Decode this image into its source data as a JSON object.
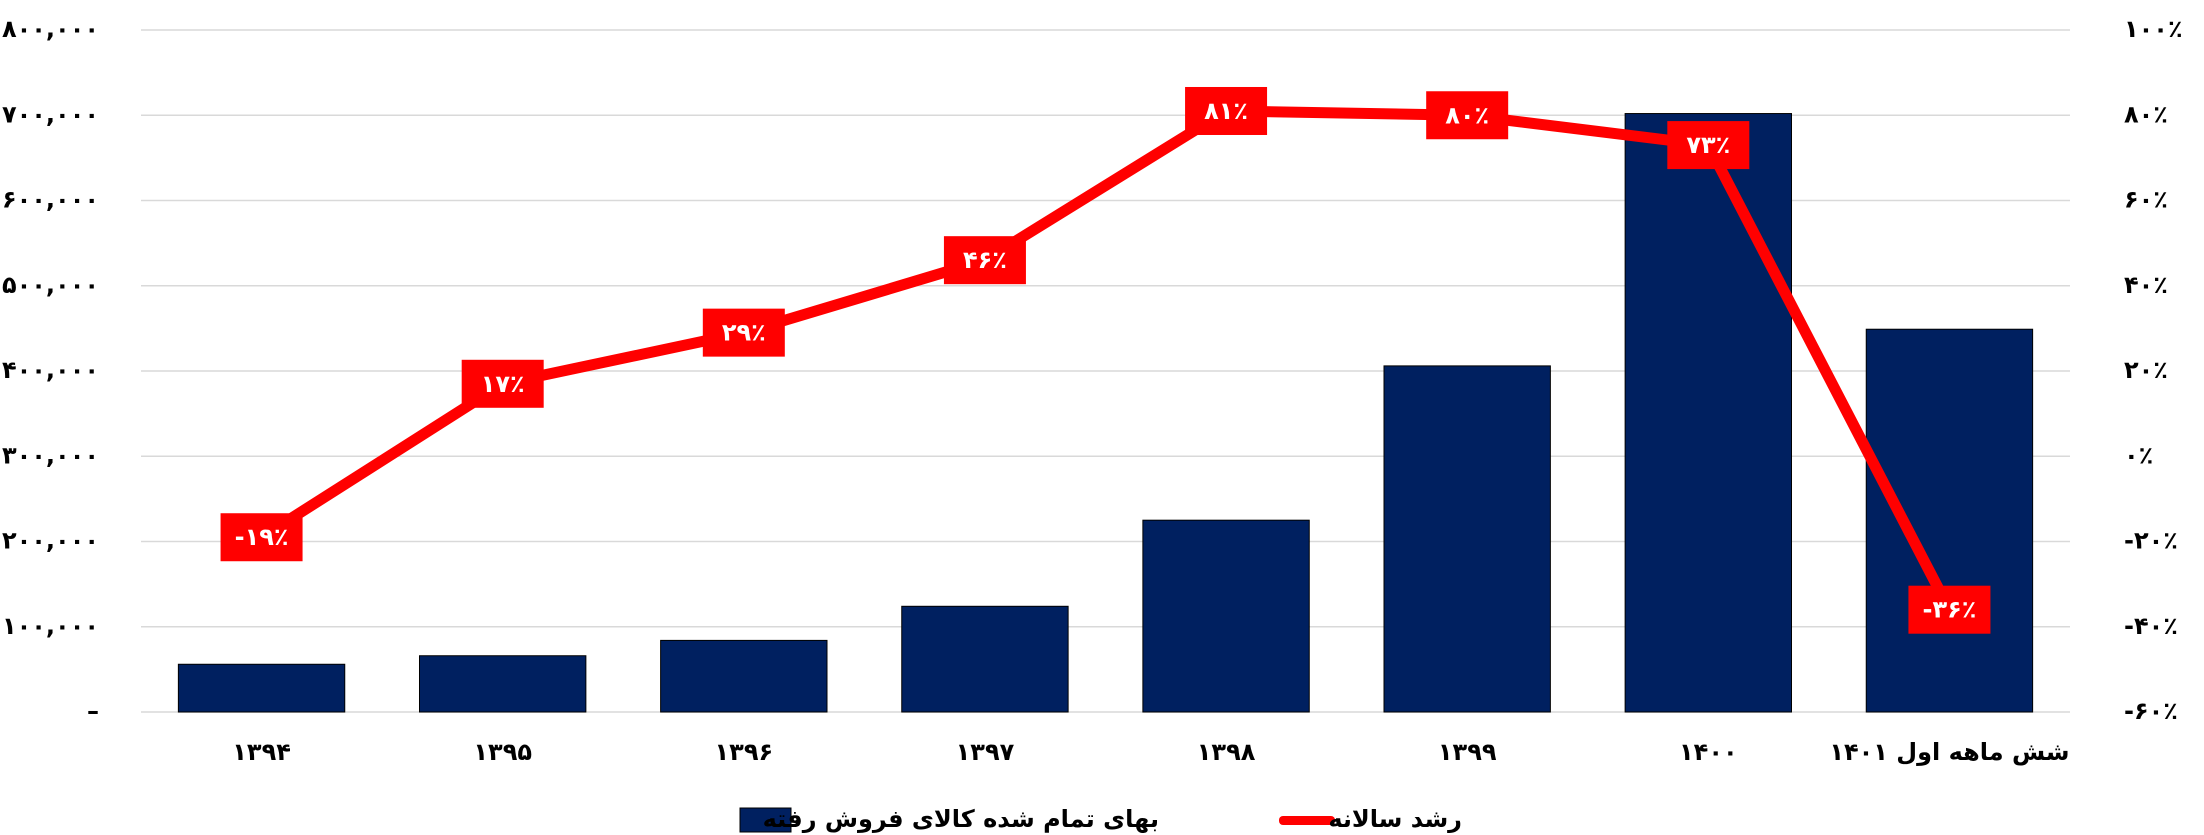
{
  "chart_data": {
    "type": "bar+line",
    "categories": [
      "۱۳۹۴",
      "۱۳۹۵",
      "۱۳۹۶",
      "۱۳۹۷",
      "۱۳۹۸",
      "۱۳۹۹",
      "۱۴۰۰",
      "شش ماهه اول ۱۴۰۱"
    ],
    "series": [
      {
        "name": "بهای تمام شده کالای فروش رفته",
        "type": "bar",
        "color": "#002060",
        "values": [
          56000,
          66000,
          84000,
          124000,
          225000,
          406000,
          702000,
          449000
        ]
      },
      {
        "name": "رشد سالانه",
        "type": "line",
        "axis": "y2",
        "color": "#ff0000",
        "values": [
          -19,
          17,
          29,
          46,
          81,
          80,
          73,
          -36
        ],
        "value_labels": [
          "-۱۹٪",
          "۱۷٪",
          "۲۹٪",
          "۴۶٪",
          "۸۱٪",
          "۸۰٪",
          "۷۳٪",
          "-۳۶٪"
        ]
      }
    ],
    "ylim": [
      0,
      800000
    ],
    "yticks": [
      {
        "value": 0,
        "label": "–"
      },
      {
        "value": 100000,
        "label": "۱۰۰,۰۰۰"
      },
      {
        "value": 200000,
        "label": "۲۰۰,۰۰۰"
      },
      {
        "value": 300000,
        "label": "۳۰۰,۰۰۰"
      },
      {
        "value": 400000,
        "label": "۴۰۰,۰۰۰"
      },
      {
        "value": 500000,
        "label": "۵۰۰,۰۰۰"
      },
      {
        "value": 600000,
        "label": "۶۰۰,۰۰۰"
      },
      {
        "value": 700000,
        "label": "۷۰۰,۰۰۰"
      },
      {
        "value": 800000,
        "label": "۸۰۰,۰۰۰"
      }
    ],
    "y2lim": [
      -60,
      100
    ],
    "y2ticks": [
      {
        "value": -60,
        "label": "-۶۰٪"
      },
      {
        "value": -40,
        "label": "-۴۰٪"
      },
      {
        "value": -20,
        "label": "-۲۰٪"
      },
      {
        "value": 0,
        "label": "۰٪"
      },
      {
        "value": 20,
        "label": "۲۰٪"
      },
      {
        "value": 40,
        "label": "۴۰٪"
      },
      {
        "value": 60,
        "label": "۶۰٪"
      },
      {
        "value": 80,
        "label": "۸۰٪"
      },
      {
        "value": 100,
        "label": "۱۰۰٪"
      }
    ],
    "grid": true
  }
}
